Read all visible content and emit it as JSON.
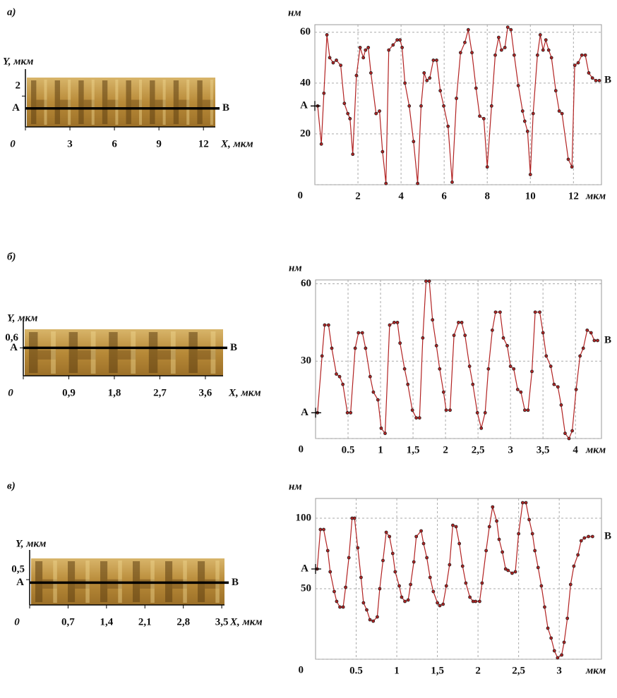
{
  "chart_data": [
    {
      "type": "image",
      "panel_label": "а)",
      "xlabel": "X, мкм",
      "ylabel": "Y, мкм",
      "xlim": [
        0,
        12.8
      ],
      "ylim": [
        0,
        3.2
      ],
      "xticks": [
        0,
        3,
        6,
        9,
        12
      ],
      "yticks": [
        2
      ],
      "profile_y": 1.2,
      "point_a": "A",
      "point_b": "B"
    },
    {
      "type": "line",
      "ylabel": "нм",
      "xlabel": "мкм",
      "color": "#b22222",
      "grid": true,
      "point_a": "A",
      "point_b": "B",
      "xlim": [
        0,
        13.3
      ],
      "ylim": [
        0,
        63
      ],
      "xticks": [
        2,
        4,
        6,
        8,
        10,
        12
      ],
      "yticks": [
        0,
        20,
        40,
        60
      ],
      "x": [
        0.13,
        0.3,
        0.42,
        0.56,
        0.69,
        0.85,
        1.0,
        1.2,
        1.37,
        1.53,
        1.63,
        1.76,
        1.93,
        2.1,
        2.25,
        2.35,
        2.48,
        2.6,
        2.84,
        3.0,
        3.14,
        3.3,
        3.43,
        3.63,
        3.82,
        3.95,
        4.05,
        4.18,
        4.38,
        4.58,
        4.77,
        4.93,
        5.07,
        5.2,
        5.33,
        5.5,
        5.65,
        5.82,
        5.98,
        6.18,
        6.37,
        6.57,
        6.76,
        6.96,
        7.12,
        7.29,
        7.48,
        7.65,
        7.84,
        8.0,
        8.2,
        8.37,
        8.53,
        8.66,
        8.82,
        8.95,
        9.1,
        9.25,
        9.44,
        9.64,
        9.74,
        9.87,
        10.0,
        10.13,
        10.33,
        10.46,
        10.59,
        10.72,
        10.85,
        10.98,
        11.18,
        11.34,
        11.47,
        11.76,
        11.93,
        12.06,
        12.22,
        12.39,
        12.55,
        12.71,
        12.88,
        13.04,
        13.2
      ],
      "values": [
        31,
        16,
        36,
        59,
        50,
        48,
        49,
        47,
        32,
        28,
        26,
        12,
        43,
        54,
        50,
        53,
        54,
        44,
        28,
        29,
        13,
        0.5,
        53,
        55,
        57,
        57,
        54,
        40,
        31,
        17,
        0.5,
        31,
        44,
        41,
        42,
        49,
        49,
        37,
        31,
        23,
        1,
        34,
        52,
        56,
        61,
        52,
        38,
        27,
        26,
        7,
        31,
        51,
        58,
        53,
        54,
        62,
        61,
        51,
        39,
        29,
        25,
        21,
        4,
        28,
        51,
        59,
        53,
        57,
        53,
        50,
        37,
        29,
        28,
        10,
        7,
        47,
        48,
        51,
        51,
        44,
        42,
        41,
        41
      ]
    },
    {
      "type": "image",
      "panel_label": "б)",
      "xlabel": "X, мкм",
      "ylabel": "Y, мкм",
      "xlim": [
        0,
        3.95
      ],
      "ylim": [
        0,
        1.0
      ],
      "xticks": [
        0,
        {
          "value": 0.9,
          "label": "0,9"
        },
        {
          "value": 1.8,
          "label": "1,8"
        },
        {
          "value": 2.7,
          "label": "2,7"
        },
        {
          "value": 3.6,
          "label": "3,6"
        }
      ],
      "yticks": [
        {
          "value": 0.6,
          "label": "0,6"
        }
      ],
      "profile_y": 0.6,
      "point_a": "A",
      "point_b": "B"
    },
    {
      "type": "line",
      "ylabel": "нм",
      "xlabel": "мкм",
      "color": "#b22222",
      "grid": true,
      "point_a": "A",
      "point_b": "B",
      "xlim": [
        0,
        4.4
      ],
      "ylim": [
        0,
        61.5
      ],
      "xticks": [
        0.5,
        1,
        {
          "value": 1.5,
          "label": "1,5"
        },
        2,
        {
          "value": 2.5,
          "label": "2,5"
        },
        3,
        {
          "value": 3.5,
          "label": "3,5"
        },
        4
      ],
      "yticks": [
        0,
        30,
        60
      ],
      "x": [
        0.03,
        0.1,
        0.14,
        0.2,
        0.25,
        0.32,
        0.37,
        0.42,
        0.49,
        0.54,
        0.61,
        0.66,
        0.72,
        0.77,
        0.84,
        0.89,
        0.96,
        1.01,
        1.07,
        1.14,
        1.21,
        1.26,
        1.3,
        1.37,
        1.42,
        1.49,
        1.55,
        1.6,
        1.65,
        1.7,
        1.75,
        1.8,
        1.86,
        1.91,
        1.97,
        2.01,
        2.07,
        2.13,
        2.2,
        2.25,
        2.3,
        2.37,
        2.42,
        2.49,
        2.55,
        2.61,
        2.66,
        2.72,
        2.77,
        2.84,
        2.89,
        2.95,
        3.0,
        3.05,
        3.11,
        3.16,
        3.22,
        3.27,
        3.33,
        3.38,
        3.45,
        3.5,
        3.55,
        3.62,
        3.67,
        3.73,
        3.78,
        3.84,
        3.9,
        3.95,
        4.01,
        4.07,
        4.12,
        4.18,
        4.24,
        4.29,
        4.34
      ],
      "values": [
        10,
        32,
        44,
        44,
        35,
        25,
        24,
        21,
        10,
        10,
        35,
        41,
        41,
        35,
        24,
        18,
        15,
        4,
        2,
        44,
        45,
        45,
        37,
        27,
        21,
        11,
        8,
        8,
        39,
        61,
        61,
        46,
        36,
        27,
        18,
        11,
        11,
        40,
        45,
        45,
        40,
        28,
        21,
        10,
        4,
        10,
        27,
        42,
        49,
        49,
        39,
        36,
        28,
        27,
        19,
        18,
        11,
        11,
        26,
        49,
        49,
        41,
        32,
        28,
        21,
        20,
        13,
        2,
        0,
        3,
        19,
        32,
        35,
        42,
        41,
        38,
        38
      ]
    },
    {
      "type": "image",
      "panel_label": "в)",
      "xlabel": "X, мкм",
      "ylabel": "Y, мкм",
      "xlim": [
        0,
        3.55
      ],
      "ylim": [
        0,
        0.92
      ],
      "xticks": [
        0,
        {
          "value": 0.7,
          "label": "0,7"
        },
        {
          "value": 1.4,
          "label": "1,4"
        },
        {
          "value": 2.1,
          "label": "2,1"
        },
        {
          "value": 2.8,
          "label": "2,8"
        },
        {
          "value": 3.5,
          "label": "3,5"
        }
      ],
      "yticks": [
        {
          "value": 0.5,
          "label": "0,5"
        }
      ],
      "profile_y": 0.44,
      "point_a": "A",
      "point_b": "B"
    },
    {
      "type": "line",
      "ylabel": "нм",
      "xlabel": "мкм",
      "color": "#b22222",
      "grid": true,
      "point_a": "A",
      "point_b": "B",
      "xlim": [
        0,
        3.52
      ],
      "ylim": [
        0,
        114
      ],
      "xticks": [
        0.5,
        1,
        {
          "value": 1.5,
          "label": "1,5"
        },
        2,
        {
          "value": 2.5,
          "label": "2,5"
        },
        3
      ],
      "yticks": [
        0,
        50,
        100
      ],
      "x": [
        0.02,
        0.06,
        0.1,
        0.15,
        0.18,
        0.23,
        0.26,
        0.3,
        0.34,
        0.37,
        0.41,
        0.45,
        0.48,
        0.52,
        0.56,
        0.59,
        0.63,
        0.67,
        0.71,
        0.76,
        0.79,
        0.83,
        0.87,
        0.91,
        0.95,
        0.98,
        1.03,
        1.06,
        1.1,
        1.14,
        1.17,
        1.21,
        1.24,
        1.3,
        1.33,
        1.37,
        1.41,
        1.45,
        1.5,
        1.53,
        1.57,
        1.61,
        1.65,
        1.69,
        1.73,
        1.77,
        1.81,
        1.85,
        1.9,
        1.94,
        1.97,
        2.02,
        2.05,
        2.1,
        2.14,
        2.18,
        2.23,
        2.26,
        2.3,
        2.34,
        2.37,
        2.42,
        2.46,
        2.5,
        2.55,
        2.59,
        2.63,
        2.67,
        2.7,
        2.74,
        2.78,
        2.82,
        2.86,
        2.9,
        2.94,
        2.98,
        3.03,
        3.06,
        3.1,
        3.14,
        3.18,
        3.23,
        3.27,
        3.31,
        3.36,
        3.41
      ],
      "values": [
        64,
        92,
        92,
        77,
        62,
        48,
        41,
        37,
        37,
        51,
        72,
        100,
        100,
        79,
        58,
        40,
        35,
        28,
        27,
        30,
        50,
        70,
        90,
        87,
        75,
        62,
        52,
        44,
        41,
        42,
        53,
        69,
        87,
        91,
        82,
        72,
        58,
        48,
        40,
        38,
        39,
        52,
        67,
        95,
        94,
        82,
        66,
        54,
        44,
        41,
        41,
        41,
        54,
        77,
        94,
        108,
        98,
        85,
        76,
        64,
        63,
        61,
        62,
        89,
        111,
        111,
        99,
        89,
        77,
        65,
        52,
        37,
        22,
        15,
        6,
        1,
        3,
        12,
        29,
        53,
        66,
        74,
        84,
        86,
        87,
        87
      ]
    }
  ]
}
